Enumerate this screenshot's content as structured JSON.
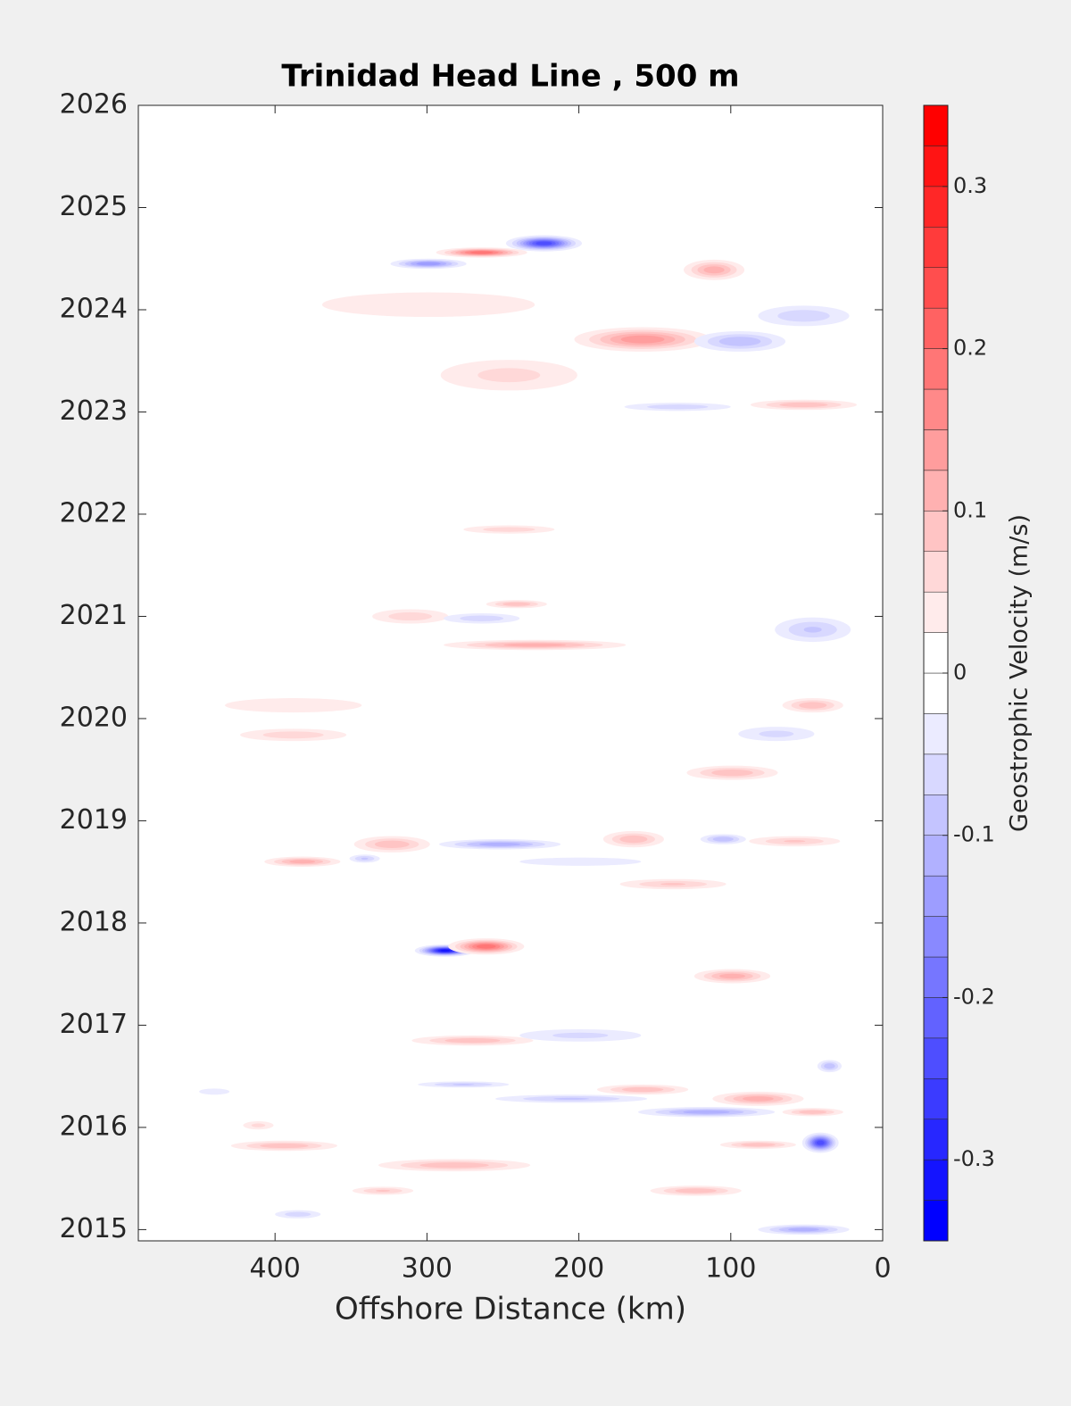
{
  "chart_data": {
    "type": "contour",
    "title": "Trinidad Head Line , 500 m",
    "xlabel": "Offshore Distance (km)",
    "colorbar_label": "Geostrophic Velocity (m/s)",
    "xlim": [
      490,
      0
    ],
    "xticks": [
      400,
      300,
      200,
      100,
      0
    ],
    "ylim": [
      2014.89,
      2026
    ],
    "yticks": [
      2015,
      2016,
      2017,
      2018,
      2019,
      2020,
      2021,
      2022,
      2023,
      2024,
      2025,
      2026
    ],
    "clim": [
      -0.35,
      0.35
    ],
    "cticks": [
      -0.3,
      -0.2,
      -0.1,
      0,
      0.1,
      0.2,
      0.3
    ],
    "level_step": 0.025,
    "low_color": "#0000ff",
    "high_color": "#ff0000",
    "features": [
      {
        "x": 288,
        "y": 2017.73,
        "rx": 20,
        "ry": 0.06,
        "value": -0.32
      },
      {
        "x": 261,
        "y": 2017.77,
        "rx": 25,
        "ry": 0.08,
        "value": 0.2
      },
      {
        "x": 223,
        "y": 2024.65,
        "rx": 25,
        "ry": 0.08,
        "value": -0.25
      },
      {
        "x": 264,
        "y": 2024.56,
        "rx": 30,
        "ry": 0.05,
        "value": 0.2
      },
      {
        "x": 299,
        "y": 2024.45,
        "rx": 25,
        "ry": 0.05,
        "value": -0.15
      },
      {
        "x": 158,
        "y": 2023.71,
        "rx": 45,
        "ry": 0.12,
        "value": 0.15
      },
      {
        "x": 111,
        "y": 2024.39,
        "rx": 20,
        "ry": 0.1,
        "value": 0.12
      },
      {
        "x": 94,
        "y": 2023.69,
        "rx": 30,
        "ry": 0.1,
        "value": -0.1
      },
      {
        "x": 52,
        "y": 2023.07,
        "rx": 35,
        "ry": 0.05,
        "value": 0.1
      },
      {
        "x": 135,
        "y": 2023.05,
        "rx": 35,
        "ry": 0.04,
        "value": -0.07
      },
      {
        "x": 246,
        "y": 2023.36,
        "rx": 45,
        "ry": 0.15,
        "value": 0.06
      },
      {
        "x": 299,
        "y": 2024.05,
        "rx": 70,
        "ry": 0.12,
        "value": 0.05
      },
      {
        "x": 52,
        "y": 2023.94,
        "rx": 30,
        "ry": 0.1,
        "value": -0.07
      },
      {
        "x": 246,
        "y": 2021.85,
        "rx": 30,
        "ry": 0.04,
        "value": 0.07
      },
      {
        "x": 229,
        "y": 2020.72,
        "rx": 60,
        "ry": 0.05,
        "value": 0.12
      },
      {
        "x": 241,
        "y": 2021.12,
        "rx": 20,
        "ry": 0.04,
        "value": 0.1
      },
      {
        "x": 311,
        "y": 2021.0,
        "rx": 25,
        "ry": 0.07,
        "value": 0.07
      },
      {
        "x": 46,
        "y": 2020.87,
        "rx": 25,
        "ry": 0.12,
        "value": -0.08
      },
      {
        "x": 264,
        "y": 2020.98,
        "rx": 25,
        "ry": 0.05,
        "value": -0.07
      },
      {
        "x": 46,
        "y": 2020.13,
        "rx": 20,
        "ry": 0.07,
        "value": 0.1
      },
      {
        "x": 388,
        "y": 2019.84,
        "rx": 35,
        "ry": 0.06,
        "value": 0.07
      },
      {
        "x": 388,
        "y": 2020.13,
        "rx": 45,
        "ry": 0.07,
        "value": 0.05
      },
      {
        "x": 70,
        "y": 2019.85,
        "rx": 25,
        "ry": 0.07,
        "value": -0.06
      },
      {
        "x": 99,
        "y": 2019.47,
        "rx": 30,
        "ry": 0.07,
        "value": 0.1
      },
      {
        "x": 323,
        "y": 2018.77,
        "rx": 25,
        "ry": 0.08,
        "value": 0.1
      },
      {
        "x": 252,
        "y": 2018.77,
        "rx": 40,
        "ry": 0.05,
        "value": -0.12
      },
      {
        "x": 164,
        "y": 2018.82,
        "rx": 20,
        "ry": 0.08,
        "value": 0.1
      },
      {
        "x": 382,
        "y": 2018.6,
        "rx": 25,
        "ry": 0.05,
        "value": 0.12
      },
      {
        "x": 341,
        "y": 2018.63,
        "rx": 10,
        "ry": 0.04,
        "value": -0.08
      },
      {
        "x": 105,
        "y": 2018.82,
        "rx": 15,
        "ry": 0.05,
        "value": -0.1
      },
      {
        "x": 58,
        "y": 2018.8,
        "rx": 30,
        "ry": 0.05,
        "value": 0.08
      },
      {
        "x": 138,
        "y": 2018.38,
        "rx": 35,
        "ry": 0.05,
        "value": 0.08
      },
      {
        "x": 199,
        "y": 2018.6,
        "rx": 40,
        "ry": 0.04,
        "value": -0.05
      },
      {
        "x": 99,
        "y": 2017.48,
        "rx": 25,
        "ry": 0.07,
        "value": 0.12
      },
      {
        "x": 270,
        "y": 2016.85,
        "rx": 40,
        "ry": 0.05,
        "value": 0.1
      },
      {
        "x": 199,
        "y": 2016.9,
        "rx": 40,
        "ry": 0.06,
        "value": -0.06
      },
      {
        "x": 158,
        "y": 2016.37,
        "rx": 30,
        "ry": 0.05,
        "value": 0.1
      },
      {
        "x": 82,
        "y": 2016.28,
        "rx": 30,
        "ry": 0.07,
        "value": 0.12
      },
      {
        "x": 46,
        "y": 2016.15,
        "rx": 20,
        "ry": 0.04,
        "value": 0.1
      },
      {
        "x": 116,
        "y": 2016.15,
        "rx": 45,
        "ry": 0.05,
        "value": -0.12
      },
      {
        "x": 205,
        "y": 2016.28,
        "rx": 50,
        "ry": 0.04,
        "value": -0.08
      },
      {
        "x": 276,
        "y": 2016.42,
        "rx": 30,
        "ry": 0.03,
        "value": -0.08
      },
      {
        "x": 41,
        "y": 2015.85,
        "rx": 12,
        "ry": 0.1,
        "value": -0.25
      },
      {
        "x": 82,
        "y": 2015.83,
        "rx": 25,
        "ry": 0.04,
        "value": 0.1
      },
      {
        "x": 394,
        "y": 2015.82,
        "rx": 35,
        "ry": 0.05,
        "value": 0.1
      },
      {
        "x": 282,
        "y": 2015.63,
        "rx": 50,
        "ry": 0.06,
        "value": 0.1
      },
      {
        "x": 123,
        "y": 2015.38,
        "rx": 30,
        "ry": 0.05,
        "value": 0.1
      },
      {
        "x": 52,
        "y": 2015.0,
        "rx": 30,
        "ry": 0.05,
        "value": -0.12
      },
      {
        "x": 385,
        "y": 2015.15,
        "rx": 15,
        "ry": 0.04,
        "value": -0.07
      },
      {
        "x": 329,
        "y": 2015.38,
        "rx": 20,
        "ry": 0.04,
        "value": 0.08
      },
      {
        "x": 440,
        "y": 2016.35,
        "rx": 10,
        "ry": 0.03,
        "value": -0.05
      },
      {
        "x": 411,
        "y": 2016.02,
        "rx": 10,
        "ry": 0.04,
        "value": 0.06
      },
      {
        "x": 35,
        "y": 2016.6,
        "rx": 8,
        "ry": 0.06,
        "value": -0.1
      }
    ]
  }
}
